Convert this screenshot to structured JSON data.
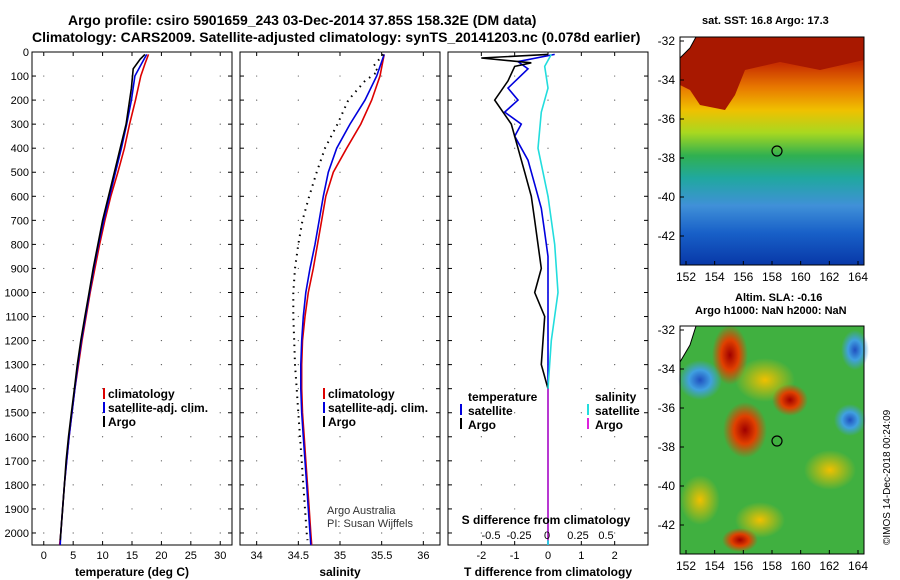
{
  "header": {
    "title1": "Argo profile: csiro 5901659_243 03-Dec-2014 37.85S 158.32E (DM data)",
    "title2": "Climatology: CARS2009. Satellite-adjusted climatology: synTS_20141203.nc (0.078d earlier)"
  },
  "footer": {
    "credit": "©IMOS 14-Dec-2018 00:24:09"
  },
  "colors": {
    "red": "#dd0000",
    "blue": "#0000dd",
    "black": "#000000",
    "cyan": "#22dddd",
    "magenta": "#dd22dd"
  },
  "chart_data": [
    {
      "type": "line",
      "id": "temperature",
      "xlabel": "temperature (deg C)",
      "ylabel": "",
      "xlim": [
        -2,
        32
      ],
      "ylim": [
        2050,
        0
      ],
      "xticks": [
        0,
        5,
        10,
        15,
        20,
        25,
        30
      ],
      "yticks": [
        0,
        100,
        200,
        300,
        400,
        500,
        600,
        700,
        800,
        900,
        1000,
        1100,
        1200,
        1300,
        1400,
        1500,
        1600,
        1700,
        1800,
        1900,
        2000
      ],
      "legend": [
        "climatology",
        "satellite-adj. clim.",
        "Argo"
      ],
      "series": [
        {
          "name": "climatology",
          "color": "red",
          "points": [
            [
              17.8,
              10
            ],
            [
              17.2,
              50
            ],
            [
              16.5,
              100
            ],
            [
              15.6,
              200
            ],
            [
              14.6,
              300
            ],
            [
              13.7,
              400
            ],
            [
              12.6,
              500
            ],
            [
              11.4,
              600
            ],
            [
              10.4,
              700
            ],
            [
              9.5,
              800
            ],
            [
              8.7,
              900
            ],
            [
              7.9,
              1000
            ],
            [
              7.2,
              1100
            ],
            [
              6.5,
              1200
            ],
            [
              5.9,
              1300
            ],
            [
              5.3,
              1400
            ],
            [
              4.8,
              1500
            ],
            [
              4.3,
              1600
            ],
            [
              3.9,
              1700
            ],
            [
              3.5,
              1800
            ],
            [
              3.2,
              1900
            ],
            [
              2.9,
              2000
            ],
            [
              2.7,
              2050
            ]
          ]
        },
        {
          "name": "satellite-adj. clim.",
          "color": "blue",
          "points": [
            [
              17.5,
              10
            ],
            [
              16.6,
              50
            ],
            [
              15.5,
              100
            ],
            [
              14.9,
              200
            ],
            [
              14.1,
              300
            ],
            [
              13.2,
              400
            ],
            [
              12.2,
              500
            ],
            [
              11.2,
              600
            ],
            [
              10.2,
              700
            ],
            [
              9.3,
              800
            ],
            [
              8.5,
              900
            ],
            [
              7.8,
              1000
            ],
            [
              7.1,
              1100
            ],
            [
              6.4,
              1200
            ],
            [
              5.8,
              1300
            ],
            [
              5.3,
              1400
            ],
            [
              4.8,
              1500
            ],
            [
              4.3,
              1600
            ],
            [
              3.9,
              1700
            ],
            [
              3.5,
              1800
            ],
            [
              3.2,
              1900
            ],
            [
              2.9,
              2000
            ],
            [
              2.8,
              2050
            ]
          ]
        },
        {
          "name": "Argo",
          "color": "black",
          "points": [
            [
              17.2,
              10
            ],
            [
              16.4,
              30
            ],
            [
              15.2,
              70
            ],
            [
              14.9,
              150
            ],
            [
              14.0,
              300
            ],
            [
              13.0,
              400
            ],
            [
              12.0,
              500
            ],
            [
              11.0,
              600
            ],
            [
              10.0,
              700
            ],
            [
              9.2,
              800
            ],
            [
              8.4,
              900
            ],
            [
              7.7,
              1000
            ],
            [
              7.0,
              1100
            ],
            [
              6.3,
              1200
            ],
            [
              5.7,
              1300
            ],
            [
              5.2,
              1400
            ],
            [
              4.7,
              1500
            ],
            [
              4.2,
              1600
            ],
            [
              3.8,
              1700
            ],
            [
              3.5,
              1800
            ],
            [
              3.2,
              1900
            ],
            [
              2.9,
              2000
            ],
            [
              2.8,
              2030
            ]
          ]
        }
      ]
    },
    {
      "type": "line",
      "id": "salinity",
      "xlabel": "salinity",
      "xlim": [
        33.8,
        36.2
      ],
      "ylim": [
        2050,
        0
      ],
      "xticks": [
        34,
        34.5,
        35,
        35.5,
        36
      ],
      "legend": [
        "climatology",
        "satellite-adj. clim.",
        "Argo"
      ],
      "annotation": [
        "Argo Australia",
        "PI: Susan Wijffels"
      ],
      "series": [
        {
          "name": "climatology",
          "color": "red",
          "points": [
            [
              35.53,
              10
            ],
            [
              35.48,
              100
            ],
            [
              35.38,
              200
            ],
            [
              35.25,
              300
            ],
            [
              35.08,
              400
            ],
            [
              34.92,
              500
            ],
            [
              34.83,
              600
            ],
            [
              34.78,
              700
            ],
            [
              34.73,
              800
            ],
            [
              34.68,
              900
            ],
            [
              34.62,
              1000
            ],
            [
              34.58,
              1100
            ],
            [
              34.55,
              1200
            ],
            [
              34.54,
              1300
            ],
            [
              34.54,
              1400
            ],
            [
              34.55,
              1500
            ],
            [
              34.57,
              1600
            ],
            [
              34.59,
              1700
            ],
            [
              34.61,
              1800
            ],
            [
              34.63,
              1900
            ],
            [
              34.65,
              2000
            ],
            [
              34.66,
              2050
            ]
          ]
        },
        {
          "name": "satellite-adj. clim.",
          "color": "blue",
          "points": [
            [
              35.53,
              10
            ],
            [
              35.44,
              100
            ],
            [
              35.3,
              200
            ],
            [
              35.12,
              300
            ],
            [
              34.96,
              400
            ],
            [
              34.86,
              500
            ],
            [
              34.8,
              600
            ],
            [
              34.75,
              700
            ],
            [
              34.7,
              800
            ],
            [
              34.64,
              900
            ],
            [
              34.59,
              1000
            ],
            [
              34.56,
              1100
            ],
            [
              34.54,
              1200
            ],
            [
              34.53,
              1300
            ],
            [
              34.53,
              1400
            ],
            [
              34.54,
              1500
            ],
            [
              34.56,
              1600
            ],
            [
              34.58,
              1700
            ],
            [
              34.6,
              1800
            ],
            [
              34.62,
              1900
            ],
            [
              34.64,
              2000
            ],
            [
              34.65,
              2050
            ]
          ]
        },
        {
          "name": "Argo",
          "color": "black",
          "style": "dotted",
          "points": [
            [
              35.52,
              10
            ],
            [
              35.4,
              60
            ],
            [
              35.46,
              80
            ],
            [
              35.3,
              120
            ],
            [
              35.1,
              200
            ],
            [
              34.97,
              300
            ],
            [
              34.82,
              400
            ],
            [
              34.72,
              500
            ],
            [
              34.63,
              600
            ],
            [
              34.55,
              700
            ],
            [
              34.5,
              800
            ],
            [
              34.46,
              900
            ],
            [
              34.44,
              1000
            ],
            [
              34.44,
              1100
            ],
            [
              34.45,
              1200
            ],
            [
              34.46,
              1300
            ],
            [
              34.48,
              1400
            ],
            [
              34.5,
              1500
            ],
            [
              34.52,
              1600
            ],
            [
              34.54,
              1700
            ],
            [
              34.56,
              1800
            ],
            [
              34.58,
              1900
            ],
            [
              34.6,
              2000
            ],
            [
              34.61,
              2030
            ]
          ]
        }
      ]
    },
    {
      "type": "line",
      "id": "difference",
      "xlabel": "T difference from climatology",
      "top_label": "S difference from climatology",
      "xlim": [
        -3,
        3
      ],
      "ylim": [
        2050,
        0
      ],
      "xticks": [
        -2,
        -1,
        0,
        1,
        2
      ],
      "s_ticks": [
        "-0.5",
        "-0.25",
        "0",
        "0.25",
        "0.5"
      ],
      "legend_left": [
        "temperature",
        "satellite",
        "Argo"
      ],
      "legend_right": [
        "salinity",
        "satellite",
        "Argo"
      ],
      "series": [
        {
          "name": "T satellite",
          "color": "blue",
          "points": [
            [
              0.2,
              10
            ],
            [
              -0.9,
              40
            ],
            [
              -0.6,
              70
            ],
            [
              -1.2,
              150
            ],
            [
              -0.9,
              200
            ],
            [
              -1.3,
              250
            ],
            [
              -0.8,
              300
            ],
            [
              -1.0,
              350
            ],
            [
              -0.6,
              450
            ],
            [
              -0.4,
              550
            ],
            [
              -0.2,
              650
            ],
            [
              -0.1,
              750
            ],
            [
              0,
              850
            ],
            [
              0,
              2050
            ]
          ]
        },
        {
          "name": "T Argo",
          "color": "black",
          "points": [
            [
              0,
              10
            ],
            [
              -2.0,
              25
            ],
            [
              -0.5,
              45
            ],
            [
              -1.0,
              60
            ],
            [
              -1.2,
              120
            ],
            [
              -1.6,
              200
            ],
            [
              -1.1,
              300
            ],
            [
              -0.9,
              400
            ],
            [
              -0.7,
              500
            ],
            [
              -0.5,
              600
            ],
            [
              -0.4,
              700
            ],
            [
              -0.3,
              800
            ],
            [
              -0.2,
              900
            ],
            [
              -0.4,
              1000
            ],
            [
              -0.1,
              1100
            ],
            [
              -0.2,
              1300
            ],
            [
              0,
              1400
            ],
            [
              0,
              2030
            ]
          ]
        },
        {
          "name": "S satellite",
          "color": "cyan",
          "points": [
            [
              0.1,
              10
            ],
            [
              -0.1,
              60
            ],
            [
              0,
              150
            ],
            [
              -0.2,
              250
            ],
            [
              -0.3,
              400
            ],
            [
              0,
              600
            ],
            [
              0.2,
              800
            ],
            [
              0.3,
              1000
            ],
            [
              0.1,
              1200
            ],
            [
              0,
              1400
            ],
            [
              0,
              2050
            ]
          ]
        },
        {
          "name": "S Argo",
          "color": "magenta",
          "points": [
            [
              0,
              1400
            ],
            [
              0,
              2030
            ]
          ]
        }
      ]
    }
  ],
  "maps": {
    "sst": {
      "title": "sat. SST: 16.8 Argo: 17.3",
      "xticks": [
        "152",
        "154",
        "156",
        "158",
        "160",
        "162",
        "164"
      ],
      "yticks": [
        "-32",
        "-34",
        "-36",
        "-38",
        "-40",
        "-42"
      ]
    },
    "sla": {
      "title1": "Altim. SLA: -0.16",
      "title2": "Argo h1000: NaN h2000: NaN",
      "xticks": [
        "152",
        "154",
        "156",
        "158",
        "160",
        "162",
        "164"
      ],
      "yticks": [
        "-32",
        "-34",
        "-36",
        "-38",
        "-40",
        "-42"
      ]
    },
    "argo_position": {
      "lon": 158.32,
      "lat": -37.85
    }
  }
}
